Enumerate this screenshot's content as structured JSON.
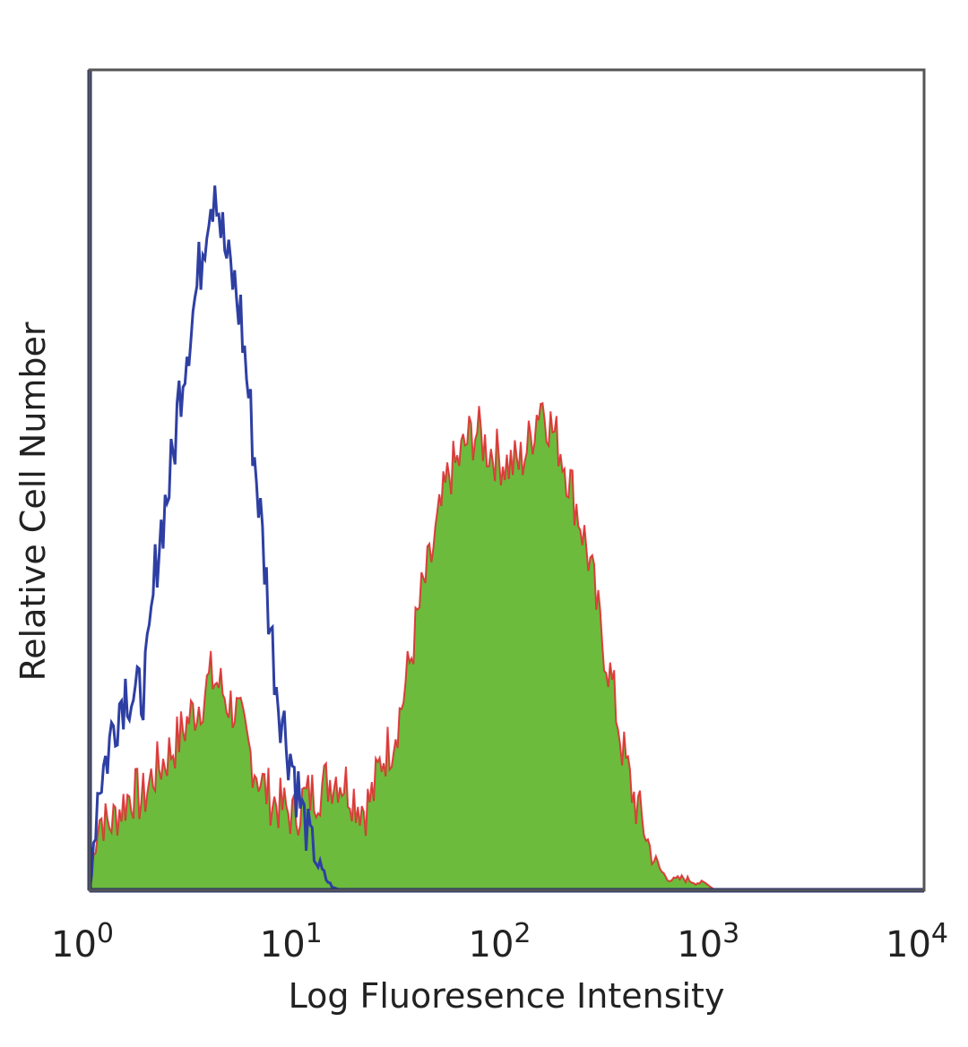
{
  "chart_data": {
    "type": "area",
    "xlabel": "Log Fluoresence Intensity",
    "ylabel": "Relative Cell Number",
    "x_scale": "log",
    "xlim": [
      1,
      10000
    ],
    "ylim": [
      0,
      100
    ],
    "x_ticks": [
      {
        "base": "10",
        "exp": "0"
      },
      {
        "base": "10",
        "exp": "1"
      },
      {
        "base": "10",
        "exp": "2"
      },
      {
        "base": "10",
        "exp": "3"
      },
      {
        "base": "10",
        "exp": "4"
      }
    ],
    "grid": false,
    "legend": "none",
    "colors": {
      "sample_fill": "#6cbb3c",
      "sample_outline": "#e0242b",
      "control_line": "#2e3fa3",
      "axis": "#1f2a6e",
      "frame": "#555555"
    },
    "series": [
      {
        "style": "outline-only",
        "color": "#2e3fa3",
        "x": [
          1,
          1.1,
          1.2,
          1.35,
          1.5,
          1.7,
          1.9,
          2.1,
          2.3,
          2.5,
          2.7,
          2.9,
          3.1,
          3.3,
          3.5,
          3.7,
          3.9,
          4.0,
          4.2,
          4.4,
          4.6,
          4.8,
          5.0,
          5.3,
          5.6,
          6.0,
          6.5,
          7.0,
          7.5,
          8.0,
          8.7,
          9.5,
          10.5,
          11.5,
          12.5,
          13.5,
          14.5,
          16,
          20,
          100,
          1000,
          10000
        ],
        "y": [
          0,
          13,
          16,
          22,
          25,
          23,
          27,
          41,
          47,
          52,
          61,
          66,
          70,
          74,
          79,
          84,
          85,
          88,
          82,
          79,
          76,
          75,
          73,
          70,
          64,
          56,
          47,
          38,
          30,
          24,
          19,
          15,
          9,
          6,
          3,
          1.5,
          0.4,
          0,
          0,
          0,
          0,
          0
        ]
      },
      {
        "style": "filled",
        "color": "#6cbb3c",
        "outline": "#e0242b",
        "x": [
          1,
          1.1,
          1.25,
          1.4,
          1.6,
          1.8,
          2.0,
          2.3,
          2.6,
          3.0,
          3.4,
          3.8,
          4.2,
          4.6,
          5.0,
          5.5,
          6.0,
          6.7,
          7.5,
          8.5,
          9.5,
          10.5,
          12.0,
          13.5,
          15.0,
          17.0,
          19.0,
          21.0,
          23.0,
          25.0,
          28.0,
          31.0,
          35.0,
          39.0,
          43.0,
          48.0,
          53.0,
          58.0,
          65.0,
          72.0,
          80.0,
          90.0,
          100.0,
          115.0,
          130.0,
          145.0,
          160.0,
          180.0,
          200.0,
          225.0,
          250.0,
          280.0,
          320.0,
          360.0,
          400.0,
          450.0,
          500.0,
          560.0,
          630.0,
          700.0,
          800.0,
          900.0,
          1000.0,
          10000.0
        ],
        "y": [
          0,
          9,
          8,
          10,
          12,
          11,
          14,
          16,
          18,
          21,
          23,
          26,
          25,
          23,
          22,
          19,
          16,
          13,
          11,
          10,
          9,
          11,
          12,
          13,
          14,
          13,
          11,
          10,
          12,
          16,
          18,
          22,
          29,
          36,
          40,
          46,
          51,
          52,
          55,
          56,
          54,
          53,
          52,
          52,
          55,
          60,
          57,
          54,
          50,
          45,
          40,
          32,
          25,
          17,
          12,
          8,
          4,
          2,
          1.2,
          1.5,
          1,
          0.8,
          0,
          0
        ]
      }
    ]
  }
}
